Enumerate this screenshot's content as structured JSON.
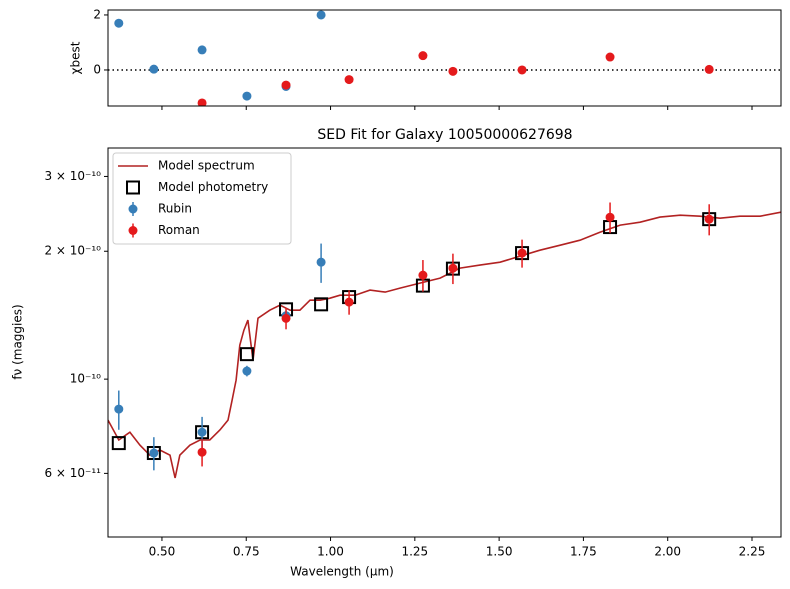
{
  "chart_data": [
    {
      "type": "scatter",
      "ylabel": "χbest",
      "xlim": [
        0.34,
        2.336
      ],
      "xticks": [
        0.5,
        0.75,
        1.0,
        1.25,
        1.5,
        1.75,
        2.0,
        2.25
      ],
      "ylim": [
        -1.31,
        2.18
      ],
      "yticks": [
        0,
        2
      ],
      "hline": 0,
      "series": [
        {
          "color": "#377eb8",
          "x": [
            0.372,
            0.476,
            0.619,
            0.752,
            0.868,
            0.972
          ],
          "values": [
            1.7,
            0.03,
            0.73,
            -0.95,
            -0.6,
            2.0
          ]
        },
        {
          "color": "#e41a1c",
          "x": [
            0.619,
            0.868,
            1.055,
            1.274,
            1.363,
            1.568,
            1.829,
            2.123
          ],
          "values": [
            -1.2,
            -0.55,
            -0.35,
            0.52,
            -0.05,
            0.0,
            0.47,
            0.02
          ]
        }
      ]
    },
    {
      "type": "errorbar",
      "title": "SED Fit for Galaxy 10050000627698",
      "xlabel": "Wavelength (µm)",
      "ylabel": "fν (maggies)",
      "log_y": true,
      "legend": "upper left",
      "xlim": [
        0.34,
        2.336
      ],
      "xticks": [
        {
          "value": 0.5,
          "label": "0.50"
        },
        {
          "value": 0.75,
          "label": "0.75"
        },
        {
          "value": 1.0,
          "label": "1.00"
        },
        {
          "value": 1.25,
          "label": "1.25"
        },
        {
          "value": 1.5,
          "label": "1.50"
        },
        {
          "value": 1.75,
          "label": "1.75"
        },
        {
          "value": 2.0,
          "label": "2.00"
        },
        {
          "value": 2.25,
          "label": "2.25"
        }
      ],
      "ylim": [
        4.25e-11,
        3.5e-10
      ],
      "yticks": [
        {
          "value": 6e-11,
          "label": "6 × 10⁻¹¹"
        },
        {
          "value": 1e-10,
          "label": "10⁻¹⁰"
        },
        {
          "value": 2e-10,
          "label": "2 × 10⁻¹⁰"
        },
        {
          "value": 3e-10,
          "label": "3 × 10⁻¹⁰"
        }
      ],
      "series": [
        {
          "name": "Model spectrum",
          "kind": "line",
          "color": "#b22222",
          "x": [
            0.34,
            0.372,
            0.405,
            0.435,
            0.464,
            0.494,
            0.524,
            0.539,
            0.553,
            0.583,
            0.613,
            0.642,
            0.672,
            0.696,
            0.708,
            0.72,
            0.731,
            0.743,
            0.755,
            0.77,
            0.785,
            0.82,
            0.85,
            0.88,
            0.909,
            0.939,
            0.969,
            0.998,
            1.028,
            1.073,
            1.117,
            1.162,
            1.206,
            1.265,
            1.325,
            1.384,
            1.443,
            1.503,
            1.562,
            1.621,
            1.681,
            1.74,
            1.799,
            1.859,
            1.918,
            1.977,
            2.037,
            2.096,
            2.155,
            2.214,
            2.274,
            2.336
          ],
          "values": [
            8.01e-11,
            7.19e-11,
            7.5e-11,
            6.99e-11,
            6.62e-11,
            6.81e-11,
            6.62e-11,
            5.85e-11,
            6.62e-11,
            6.99e-11,
            7.19e-11,
            7.19e-11,
            7.59e-11,
            8.01e-11,
            8.92e-11,
            9.95e-11,
            1.202e-10,
            1.304e-10,
            1.377e-10,
            1.108e-10,
            1.391e-10,
            1.453e-10,
            1.493e-10,
            1.453e-10,
            1.453e-10,
            1.534e-10,
            1.534e-10,
            1.551e-10,
            1.576e-10,
            1.576e-10,
            1.62e-10,
            1.603e-10,
            1.638e-10,
            1.683e-10,
            1.729e-10,
            1.825e-10,
            1.855e-10,
            1.885e-10,
            1.947e-10,
            2.011e-10,
            2.067e-10,
            2.123e-10,
            2.218e-10,
            2.304e-10,
            2.341e-10,
            2.406e-10,
            2.432e-10,
            2.418e-10,
            2.392e-10,
            2.418e-10,
            2.418e-10,
            2.472e-10
          ]
        },
        {
          "name": "Model photometry",
          "kind": "square",
          "color": "#000000",
          "x": [
            0.372,
            0.476,
            0.619,
            0.752,
            0.868,
            0.972,
            1.055,
            1.274,
            1.363,
            1.568,
            1.829,
            2.123
          ],
          "values": [
            7.07e-11,
            6.7e-11,
            7.5e-11,
            1.145e-10,
            1.46e-10,
            1.5e-10,
            1.56e-10,
            1.66e-10,
            1.82e-10,
            1.98e-10,
            2.28e-10,
            2.38e-10
          ]
        },
        {
          "name": "Rubin",
          "kind": "errorbar",
          "color": "#377eb8",
          "x": [
            0.372,
            0.476,
            0.619,
            0.752,
            0.868,
            0.972
          ],
          "values": [
            8.5e-11,
            6.7e-11,
            7.5e-11,
            1.045e-10,
            1.41e-10,
            1.885e-10
          ],
          "errors": [
            9e-12,
            6e-12,
            6.5e-12,
            3e-12,
            4e-12,
            2e-11
          ]
        },
        {
          "name": "Roman",
          "kind": "errorbar",
          "color": "#e41a1c",
          "x": [
            0.619,
            0.868,
            1.055,
            1.274,
            1.363,
            1.568,
            1.829,
            2.123
          ],
          "values": [
            6.73e-11,
            1.39e-10,
            1.518e-10,
            1.757e-10,
            1.824e-10,
            1.98e-10,
            2.405e-10,
            2.38e-10
          ],
          "errors": [
            5e-12,
            8e-12,
            1e-11,
            1.5e-11,
            1.5e-11,
            1.5e-11,
            2e-11,
            2e-11
          ]
        }
      ]
    }
  ]
}
